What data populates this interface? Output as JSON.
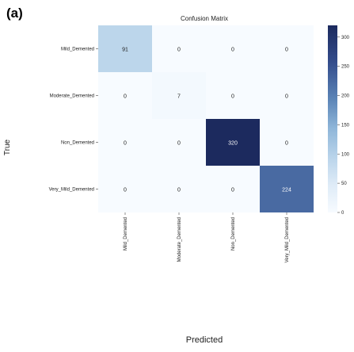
{
  "panel_label": "(a)",
  "chart_data": {
    "type": "heatmap",
    "title": "Confusion Matrix",
    "xlabel": "Predicted",
    "ylabel": "True",
    "row_labels": [
      "Mild_Demented",
      "Moderate_Demented",
      "Non_Demented",
      "Very_Mild_Demented"
    ],
    "col_labels": [
      "Mild_Demented",
      "Moderate_Demented",
      "Non_Demented",
      "Very_Mild_Demented"
    ],
    "values": [
      [
        91,
        0,
        0,
        0
      ],
      [
        0,
        7,
        0,
        0
      ],
      [
        0,
        0,
        320,
        0
      ],
      [
        0,
        0,
        0,
        224
      ]
    ],
    "colorscale": {
      "range": [
        0,
        320
      ],
      "low_color": "#f7fbff",
      "high_color": "#1c2a5e",
      "ticks": [
        0,
        50,
        100,
        150,
        200,
        250,
        300
      ],
      "tick_labels": [
        "0",
        "50",
        "100",
        "150",
        "200",
        "250",
        "300"
      ]
    },
    "legend": "right"
  }
}
